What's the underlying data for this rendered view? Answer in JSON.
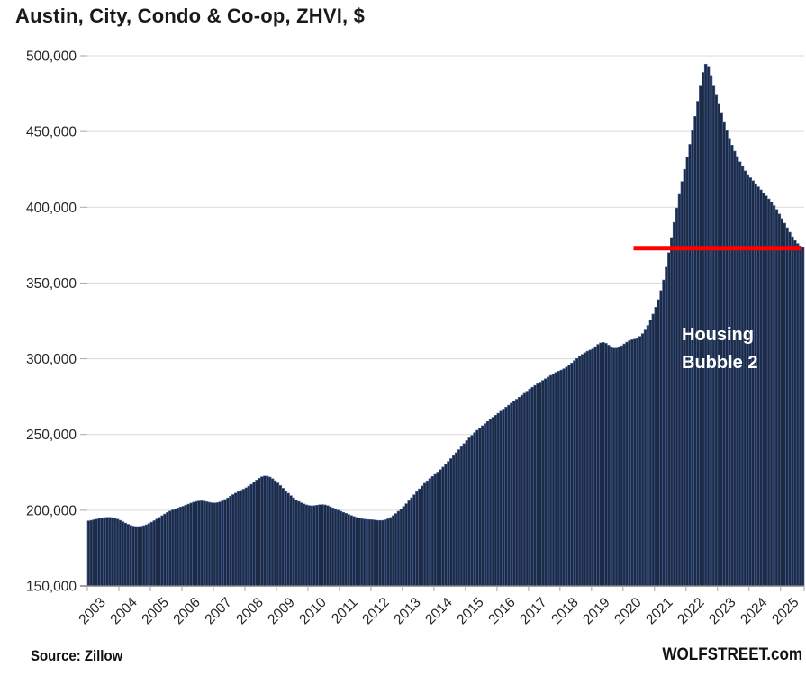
{
  "header": {
    "title": "Austin, City, Condo & Co-op, ZHVI, $"
  },
  "footer": {
    "source": "Source: Zillow",
    "brand": "WOLFSTREET.com"
  },
  "annotation": {
    "line1": "Housing",
    "line2": "Bubble 2"
  },
  "colors": {
    "bar_fill": "#1c2a44",
    "bar_edge": "#49659c",
    "red_line": "#ff0000",
    "gridline": "#d9d9d9",
    "tick": "#a6a6a6",
    "axis_line": "#808080",
    "label_text": "#262626",
    "annotation_text": "#ffffff"
  },
  "chart_data": {
    "type": "bar",
    "title": "Austin, City, Condo & Co-op, ZHVI, $",
    "xlabel": "",
    "ylabel": "ZHVI, $",
    "ylim": [
      150000,
      500000
    ],
    "ytick_interval": 50000,
    "ytick_labels": [
      "150,000",
      "200,000",
      "250,000",
      "300,000",
      "350,000",
      "400,000",
      "450,000",
      "500,000"
    ],
    "x_start": "2003-01",
    "x_end": "2025-09",
    "grid": "horizontal",
    "legend": "none",
    "year_labels": [
      "2003",
      "2004",
      "2005",
      "2006",
      "2007",
      "2008",
      "2009",
      "2010",
      "2011",
      "2012",
      "2013",
      "2014",
      "2015",
      "2016",
      "2017",
      "2018",
      "2019",
      "2020",
      "2021",
      "2022",
      "2023",
      "2024",
      "2025"
    ],
    "red_line": {
      "value": 373000,
      "start_month": "2020-05",
      "start_month_index": 208
    },
    "annotation_text": "Housing Bubble 2",
    "series": [
      {
        "name": "Austin City Condo & Co-op ZHVI ($)",
        "values": [
          193000,
          193300,
          193700,
          194100,
          194500,
          194900,
          195100,
          195300,
          195300,
          195100,
          194700,
          194100,
          193300,
          192400,
          191500,
          190700,
          190000,
          189500,
          189200,
          189200,
          189400,
          189800,
          190400,
          191200,
          192100,
          193100,
          194200,
          195300,
          196400,
          197500,
          198500,
          199400,
          200200,
          200900,
          201500,
          202100,
          202600,
          203300,
          204000,
          204700,
          205300,
          205800,
          206100,
          206200,
          206000,
          205600,
          205200,
          204900,
          204800,
          205000,
          205500,
          206200,
          207100,
          208100,
          209200,
          210300,
          211300,
          212200,
          213100,
          213900,
          214800,
          215900,
          217100,
          218500,
          219900,
          221100,
          222100,
          222600,
          222500,
          221900,
          220800,
          219500,
          218000,
          216300,
          214500,
          212800,
          211200,
          209600,
          208200,
          206900,
          205800,
          204900,
          204100,
          203500,
          203100,
          202900,
          203000,
          203300,
          203600,
          203700,
          203500,
          203000,
          202300,
          201500,
          200700,
          200000,
          199300,
          198600,
          197900,
          197200,
          196500,
          195900,
          195300,
          194800,
          194400,
          194100,
          193900,
          193800,
          193700,
          193500,
          193300,
          193200,
          193300,
          193700,
          194300,
          195200,
          196400,
          197800,
          199300,
          200900,
          202500,
          204300,
          206200,
          208200,
          210200,
          212200,
          214100,
          216000,
          217800,
          219400,
          220900,
          222300,
          223700,
          225200,
          226800,
          228500,
          230300,
          232200,
          234100,
          236000,
          238000,
          240000,
          242000,
          244000,
          246000,
          247800,
          249500,
          251200,
          252800,
          254300,
          255800,
          257200,
          258600,
          260000,
          261400,
          262700,
          264000,
          265400,
          266800,
          268100,
          269400,
          270700,
          272000,
          273300,
          274600,
          275900,
          277200,
          278600,
          280000,
          281200,
          282400,
          283500,
          284600,
          285700,
          286800,
          287900,
          289000,
          290000,
          291000,
          291800,
          292500,
          293400,
          294500,
          295800,
          297200,
          298700,
          300200,
          301600,
          302900,
          304000,
          305000,
          305800,
          306500,
          308000,
          309500,
          310500,
          310800,
          310200,
          309000,
          307800,
          307000,
          307000,
          307600,
          308600,
          309800,
          311000,
          312000,
          312600,
          313000,
          313600,
          314800,
          316600,
          319000,
          322000,
          325500,
          329500,
          334000,
          339000,
          345000,
          352000,
          360500,
          370000,
          380000,
          390000,
          399500,
          408500,
          417000,
          425000,
          433000,
          441500,
          450500,
          460000,
          470000,
          480000,
          489000,
          494500,
          493000,
          487000,
          480000,
          474000,
          468000,
          462000,
          456000,
          450500,
          445500,
          441000,
          437000,
          433500,
          430000,
          427000,
          424000,
          421500,
          419500,
          417500,
          415500,
          413500,
          411500,
          409500,
          407500,
          405500,
          403500,
          401000,
          398500,
          395500,
          392500,
          389500,
          386500,
          383500,
          380500,
          378000,
          376000,
          374500,
          373500
        ]
      }
    ]
  }
}
